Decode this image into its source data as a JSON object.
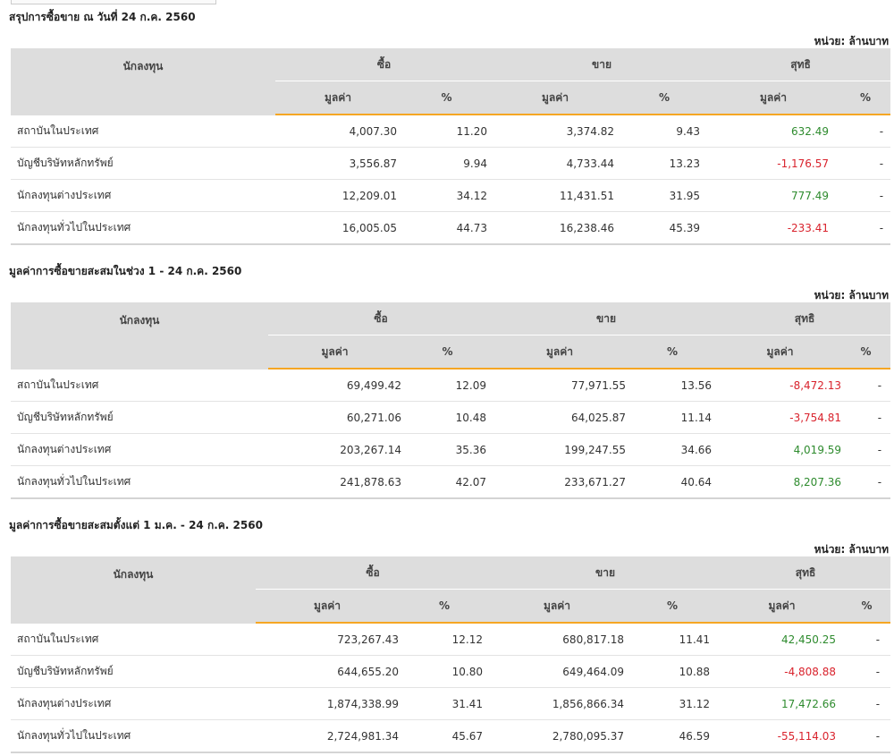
{
  "colors": {
    "header_bg": "#dddddd",
    "accent": "#f5a623",
    "positive": "#2e8b2e",
    "negative": "#d9232d"
  },
  "headers": {
    "investor": "นักลงทุน",
    "buy": "ซื้อ",
    "sell": "ขาย",
    "net": "สุทธิ",
    "value": "มูลค่า",
    "percent": "%"
  },
  "unit_label": "หน่วย: ล้านบาท",
  "sections": [
    {
      "title": "สรุปการซื้อขาย ณ วันที่ 24 ก.ค. 2560",
      "rows": [
        {
          "name": "สถาบันในประเทศ",
          "buy": "4,007.30",
          "buy_pct": "11.20",
          "sell": "3,374.82",
          "sell_pct": "9.43",
          "net": "632.49",
          "net_pct": "-"
        },
        {
          "name": "บัญชีบริษัทหลักทรัพย์",
          "buy": "3,556.87",
          "buy_pct": "9.94",
          "sell": "4,733.44",
          "sell_pct": "13.23",
          "net": "-1,176.57",
          "net_pct": "-"
        },
        {
          "name": "นักลงทุนต่างประเทศ",
          "buy": "12,209.01",
          "buy_pct": "34.12",
          "sell": "11,431.51",
          "sell_pct": "31.95",
          "net": "777.49",
          "net_pct": "-"
        },
        {
          "name": "นักลงทุนทั่วไปในประเทศ",
          "buy": "16,005.05",
          "buy_pct": "44.73",
          "sell": "16,238.46",
          "sell_pct": "45.39",
          "net": "-233.41",
          "net_pct": "-"
        }
      ]
    },
    {
      "title": "มูลค่าการซื้อขายสะสมในช่วง 1 - 24 ก.ค. 2560",
      "rows": [
        {
          "name": "สถาบันในประเทศ",
          "buy": "69,499.42",
          "buy_pct": "12.09",
          "sell": "77,971.55",
          "sell_pct": "13.56",
          "net": "-8,472.13",
          "net_pct": "-"
        },
        {
          "name": "บัญชีบริษัทหลักทรัพย์",
          "buy": "60,271.06",
          "buy_pct": "10.48",
          "sell": "64,025.87",
          "sell_pct": "11.14",
          "net": "-3,754.81",
          "net_pct": "-"
        },
        {
          "name": "นักลงทุนต่างประเทศ",
          "buy": "203,267.14",
          "buy_pct": "35.36",
          "sell": "199,247.55",
          "sell_pct": "34.66",
          "net": "4,019.59",
          "net_pct": "-"
        },
        {
          "name": "นักลงทุนทั่วไปในประเทศ",
          "buy": "241,878.63",
          "buy_pct": "42.07",
          "sell": "233,671.27",
          "sell_pct": "40.64",
          "net": "8,207.36",
          "net_pct": "-"
        }
      ]
    },
    {
      "title": "มูลค่าการซื้อขายสะสมตั้งแต่ 1 ม.ค. - 24 ก.ค. 2560",
      "rows": [
        {
          "name": "สถาบันในประเทศ",
          "buy": "723,267.43",
          "buy_pct": "12.12",
          "sell": "680,817.18",
          "sell_pct": "11.41",
          "net": "42,450.25",
          "net_pct": "-"
        },
        {
          "name": "บัญชีบริษัทหลักทรัพย์",
          "buy": "644,655.20",
          "buy_pct": "10.80",
          "sell": "649,464.09",
          "sell_pct": "10.88",
          "net": "-4,808.88",
          "net_pct": "-"
        },
        {
          "name": "นักลงทุนต่างประเทศ",
          "buy": "1,874,338.99",
          "buy_pct": "31.41",
          "sell": "1,856,866.34",
          "sell_pct": "31.12",
          "net": "17,472.66",
          "net_pct": "-"
        },
        {
          "name": "นักลงทุนทั่วไปในประเทศ",
          "buy": "2,724,981.34",
          "buy_pct": "45.67",
          "sell": "2,780,095.37",
          "sell_pct": "46.59",
          "net": "-55,114.03",
          "net_pct": "-"
        }
      ]
    }
  ]
}
